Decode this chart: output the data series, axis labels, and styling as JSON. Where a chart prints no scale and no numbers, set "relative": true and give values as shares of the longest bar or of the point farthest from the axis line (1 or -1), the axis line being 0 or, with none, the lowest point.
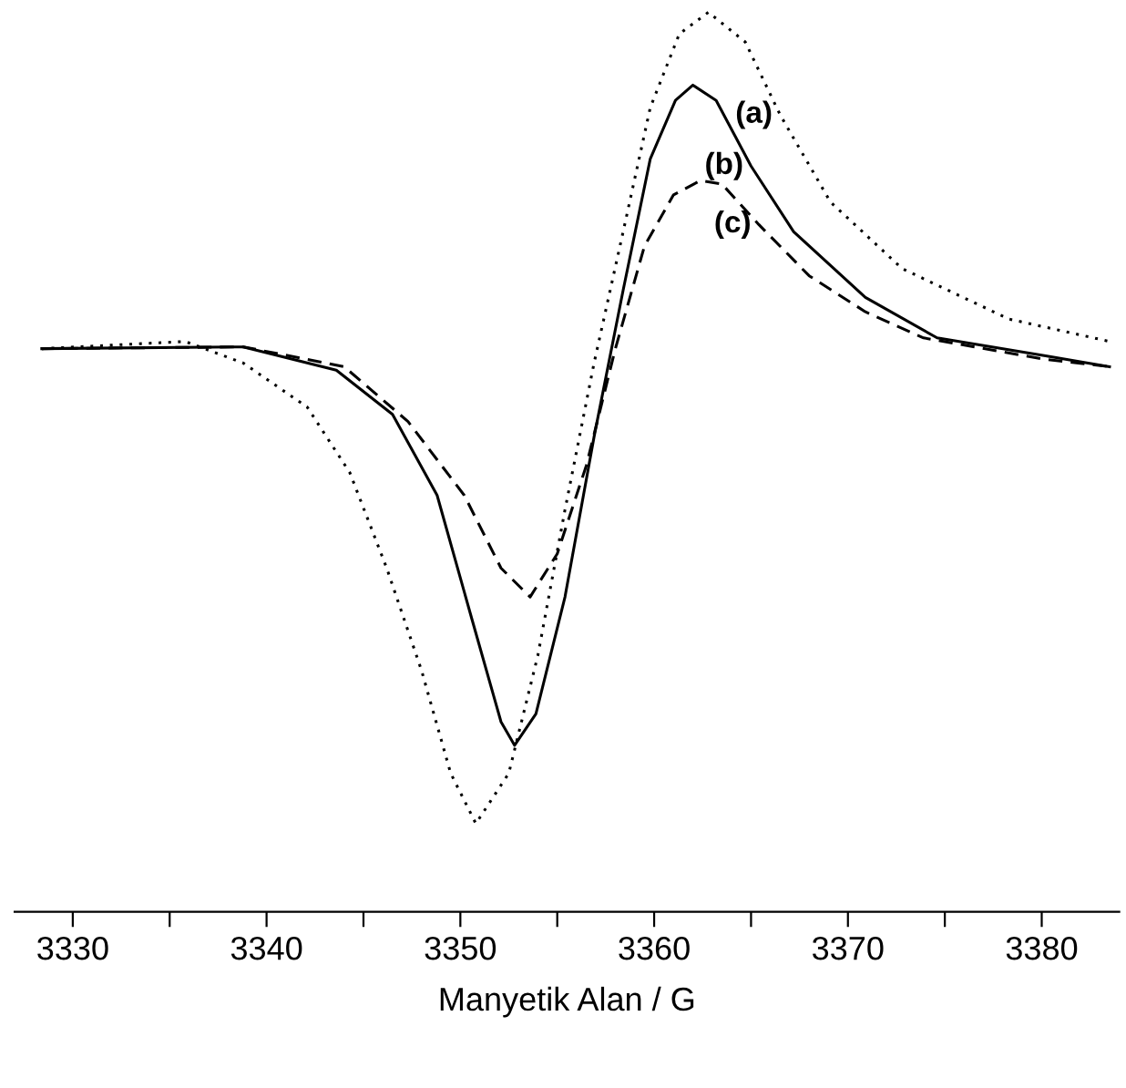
{
  "chart_data": {
    "type": "line",
    "xlabel": "Manyetik Alan / G",
    "relative": true,
    "xlim": [
      3327,
      3384
    ],
    "xticks": [
      3330,
      {
        "value": 3335,
        "label": null
      },
      3340,
      {
        "value": 3345,
        "label": null
      },
      3350,
      {
        "value": 3355,
        "label": null
      },
      3360,
      {
        "value": 3365,
        "label": null
      },
      3370,
      {
        "value": 3375,
        "label": null
      },
      3380
    ],
    "tick_labels": "x",
    "grid": false,
    "legend": false,
    "marker": "none",
    "series": [
      {
        "color": "#000000",
        "line_style": "dotted",
        "x": [
          3328.4,
          3335.8,
          3338.8,
          3342.1,
          3344.3,
          3346.2,
          3348.0,
          3349.5,
          3350.8,
          3352.5,
          3354.0,
          3355.4,
          3356.9,
          3358.4,
          3359.8,
          3361.3,
          3362.8,
          3364.7,
          3366.5,
          3369.1,
          3372.8,
          3378.3,
          3383.5
        ],
        "values": [
          0.626,
          0.634,
          0.61,
          0.561,
          0.488,
          0.382,
          0.268,
          0.154,
          0.098,
          0.154,
          0.285,
          0.447,
          0.61,
          0.756,
          0.894,
          0.976,
          1,
          0.967,
          0.886,
          0.789,
          0.715,
          0.659,
          0.634
        ]
      },
      {
        "color": "#000000",
        "line_style": "solid",
        "x": [
          3328.4,
          3338.8,
          3343.6,
          3346.5,
          3348.8,
          3350.6,
          3352.1,
          3352.8,
          3353.9,
          3355.4,
          3356.9,
          3358.4,
          3359.8,
          3361.1,
          3362.0,
          3363.2,
          3365.0,
          3367.2,
          3370.9,
          3374.6,
          3380.2,
          3383.5
        ],
        "values": [
          0.626,
          0.628,
          0.602,
          0.553,
          0.463,
          0.325,
          0.211,
          0.185,
          0.22,
          0.35,
          0.528,
          0.691,
          0.837,
          0.902,
          0.919,
          0.902,
          0.829,
          0.756,
          0.683,
          0.638,
          0.618,
          0.606
        ]
      },
      {
        "color": "#000000",
        "line_style": "dashed",
        "x": [
          3328.4,
          3338.8,
          3344.0,
          3347.3,
          3350.2,
          3352.1,
          3353.6,
          3355.0,
          3356.5,
          3358.0,
          3359.5,
          3361.0,
          3362.4,
          3363.5,
          3365.4,
          3368.0,
          3370.9,
          3373.9,
          3380.2,
          3383.5
        ],
        "values": [
          0.626,
          0.628,
          0.606,
          0.545,
          0.463,
          0.382,
          0.35,
          0.398,
          0.496,
          0.626,
          0.74,
          0.797,
          0.813,
          0.809,
          0.764,
          0.707,
          0.667,
          0.638,
          0.614,
          0.606
        ]
      }
    ],
    "annotations": [
      {
        "text": "(a)",
        "x": 3366.5,
        "y": 0.886
      },
      {
        "text": "(b)",
        "x": 3365.0,
        "y": 0.829
      },
      {
        "text": "(c)",
        "x": 3365.4,
        "y": 0.764
      }
    ]
  }
}
